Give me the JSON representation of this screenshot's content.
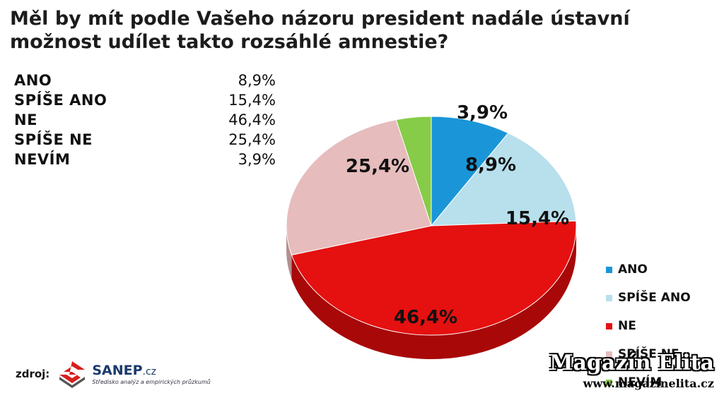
{
  "title_line1": "Měl by mít podle Vašeho názoru president nadále ústavní",
  "title_line2": "možnost udílet takto rozsáhlé amnestie?",
  "table": [
    {
      "label": "ANO",
      "value": "8,9%"
    },
    {
      "label": "SPÍŠE ANO",
      "value": "15,4%"
    },
    {
      "label": "NE",
      "value": "46,4%"
    },
    {
      "label": "SPÍŠE NE",
      "value": "25,4%"
    },
    {
      "label": "NEVÍM",
      "value": "3,9%"
    }
  ],
  "chart_data": {
    "type": "pie",
    "title": "Měl by mít podle Vašeho názoru president nadále ústavní možnost udílet takto rozsáhlé amnestie?",
    "categories": [
      "ANO",
      "SPÍŠE ANO",
      "NE",
      "SPÍŠE NE",
      "NEVÍM"
    ],
    "values": [
      8.9,
      15.4,
      46.4,
      25.4,
      3.9
    ],
    "data_labels": [
      "8,9%",
      "15,4%",
      "46,4%",
      "25,4%",
      "3,9%"
    ],
    "colors": [
      "#1a96d8",
      "#b7dfec",
      "#e51010",
      "#e6bcbc",
      "#86cc48"
    ],
    "side_colors": [
      "#0f6aa0",
      "#8fb8c8",
      "#a80808",
      "#b58e8e",
      "#5d9a2f"
    ],
    "legend": {
      "position": "right"
    },
    "three_d": true
  },
  "source": {
    "label": "zdroj:",
    "logo_name": "SANEP",
    "logo_suffix": ".cz",
    "logo_tagline": "Středisko analýz a empirických průzkumů"
  },
  "watermark": {
    "name": "Magazín Elita",
    "url": "www.magazinelita.cz"
  }
}
